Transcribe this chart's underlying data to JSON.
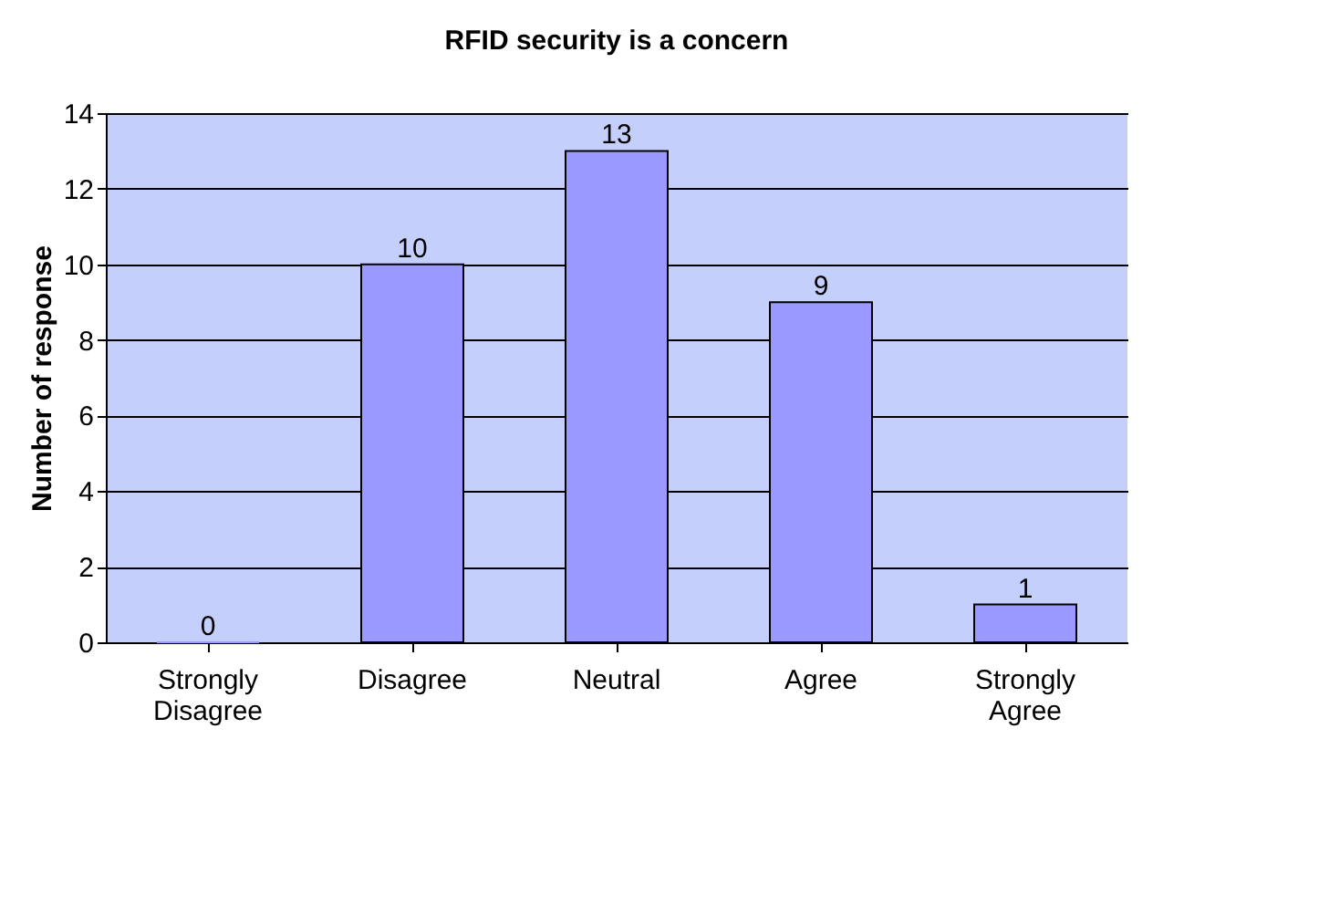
{
  "chart_data": {
    "type": "bar",
    "title": "RFID security is a concern",
    "ylabel": "Number of response",
    "categories": [
      "Strongly Disagree",
      "Disagree",
      "Neutral",
      "Agree",
      "Strongly Agree"
    ],
    "values": [
      0,
      10,
      13,
      9,
      1
    ],
    "color": "#9999ff",
    "ylim": [
      0,
      14
    ],
    "yticks": [
      0,
      2,
      4,
      6,
      8,
      10,
      12,
      14
    ],
    "grid": "y",
    "data_labels": true
  }
}
